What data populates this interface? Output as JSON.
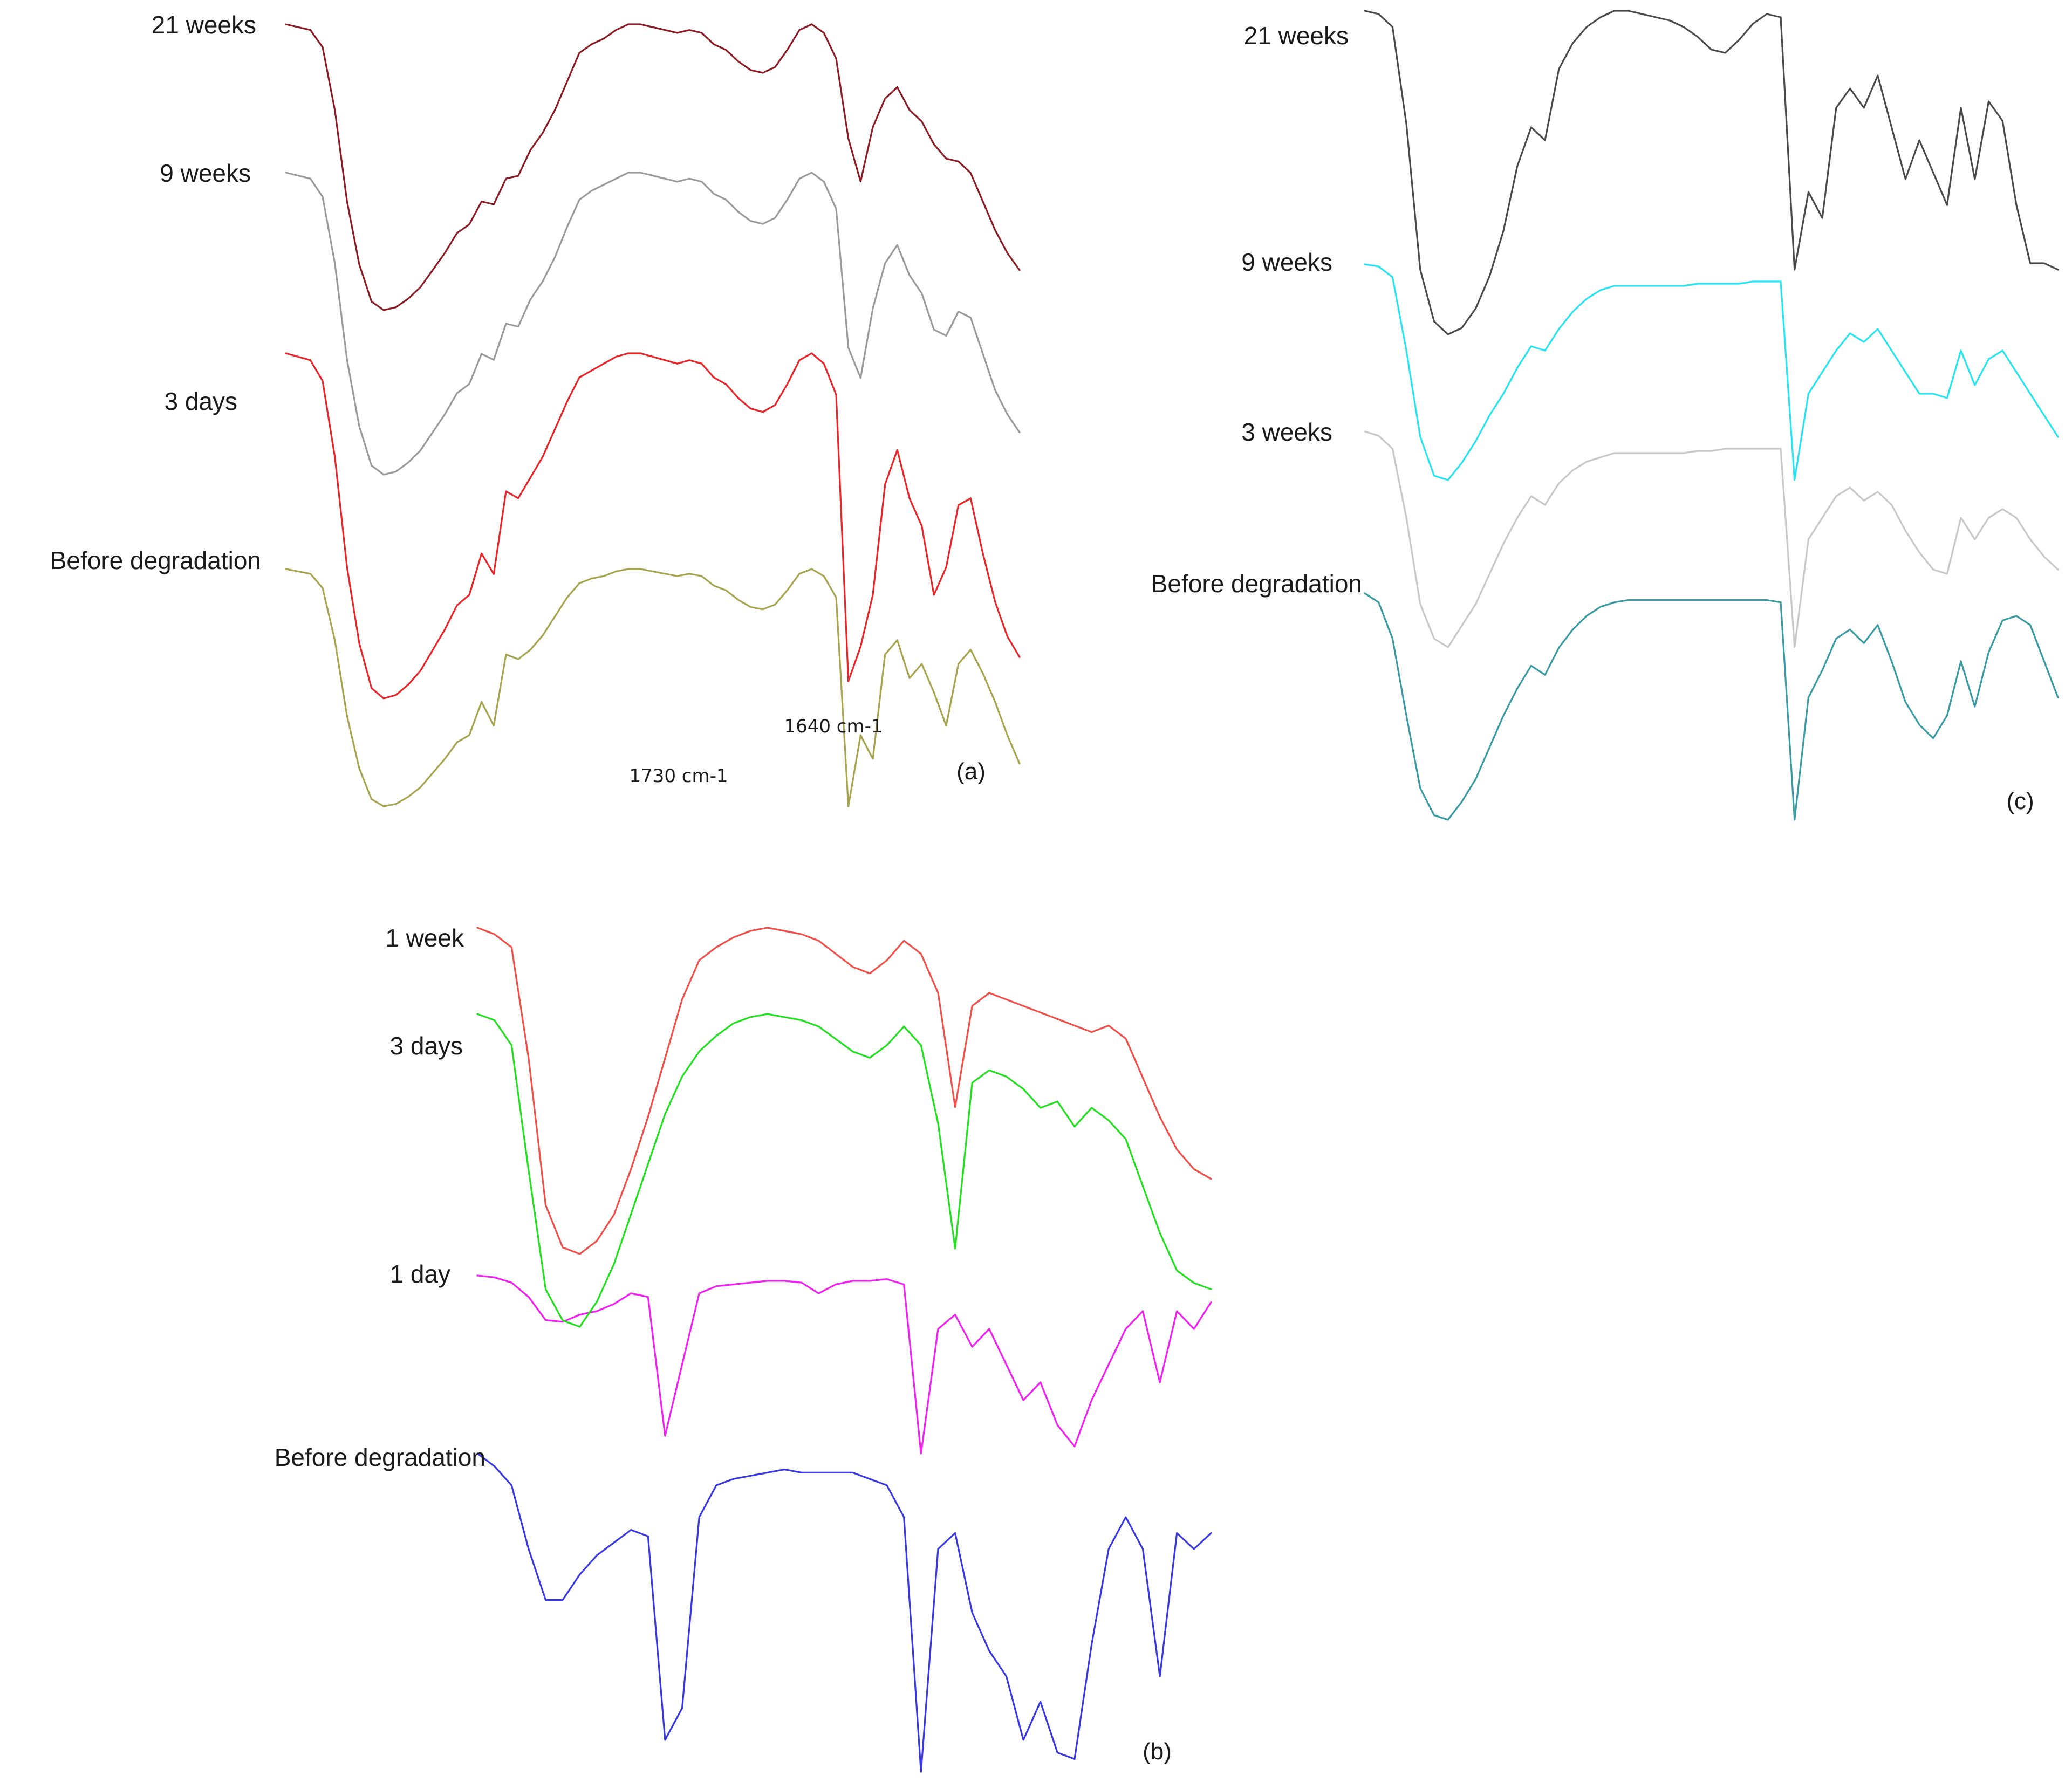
{
  "chart_data": [
    {
      "type": "line",
      "panel": "(a)",
      "annotations": [
        "1730 cm-1",
        "1640 cm-1"
      ],
      "series": [
        {
          "name": "21 weeks",
          "color": "#8b1c24",
          "values": [
            0.0,
            0.01,
            0.02,
            0.08,
            0.3,
            0.62,
            0.84,
            0.97,
            1.0,
            0.99,
            0.96,
            0.92,
            0.86,
            0.8,
            0.73,
            0.7,
            0.62,
            0.63,
            0.54,
            0.53,
            0.44,
            0.38,
            0.3,
            0.2,
            0.1,
            0.07,
            0.05,
            0.02,
            0.0,
            0.0,
            0.01,
            0.02,
            0.03,
            0.02,
            0.03,
            0.07,
            0.09,
            0.13,
            0.16,
            0.17,
            0.15,
            0.09,
            0.02,
            0.0,
            0.03,
            0.12,
            0.4,
            0.55,
            0.36,
            0.26,
            0.22,
            0.3,
            0.34,
            0.42,
            0.47,
            0.48,
            0.52,
            0.62,
            0.72,
            0.8,
            0.86
          ]
        },
        {
          "name": "9 weeks",
          "color": "#9a9a9a",
          "values": [
            0.0,
            0.01,
            0.02,
            0.08,
            0.3,
            0.62,
            0.84,
            0.97,
            1.0,
            0.99,
            0.96,
            0.92,
            0.86,
            0.8,
            0.73,
            0.7,
            0.6,
            0.62,
            0.5,
            0.51,
            0.42,
            0.36,
            0.28,
            0.18,
            0.09,
            0.06,
            0.04,
            0.02,
            0.0,
            0.0,
            0.01,
            0.02,
            0.03,
            0.02,
            0.03,
            0.07,
            0.09,
            0.13,
            0.16,
            0.17,
            0.15,
            0.09,
            0.02,
            0.0,
            0.03,
            0.12,
            0.58,
            0.68,
            0.45,
            0.3,
            0.24,
            0.34,
            0.4,
            0.52,
            0.54,
            0.46,
            0.48,
            0.6,
            0.72,
            0.8,
            0.86
          ]
        },
        {
          "name": "3 days",
          "color": "#e8262a",
          "values": [
            0.0,
            0.01,
            0.02,
            0.08,
            0.3,
            0.62,
            0.84,
            0.97,
            1.0,
            0.99,
            0.96,
            0.92,
            0.86,
            0.8,
            0.73,
            0.7,
            0.58,
            0.64,
            0.4,
            0.42,
            0.36,
            0.3,
            0.22,
            0.14,
            0.07,
            0.05,
            0.03,
            0.01,
            0.0,
            0.0,
            0.01,
            0.02,
            0.03,
            0.02,
            0.03,
            0.07,
            0.09,
            0.13,
            0.16,
            0.17,
            0.15,
            0.09,
            0.02,
            0.0,
            0.03,
            0.12,
            0.95,
            0.85,
            0.7,
            0.38,
            0.28,
            0.42,
            0.5,
            0.7,
            0.62,
            0.44,
            0.42,
            0.58,
            0.72,
            0.82,
            0.88
          ]
        },
        {
          "name": "Before degradation",
          "color": "#a8a34e",
          "values": [
            0.0,
            0.01,
            0.02,
            0.08,
            0.3,
            0.62,
            0.84,
            0.97,
            1.0,
            0.99,
            0.96,
            0.92,
            0.86,
            0.8,
            0.73,
            0.7,
            0.56,
            0.66,
            0.36,
            0.38,
            0.34,
            0.28,
            0.2,
            0.12,
            0.06,
            0.04,
            0.03,
            0.01,
            0.0,
            0.0,
            0.01,
            0.02,
            0.03,
            0.02,
            0.03,
            0.07,
            0.09,
            0.13,
            0.16,
            0.17,
            0.15,
            0.09,
            0.02,
            0.0,
            0.03,
            0.12,
            1.0,
            0.7,
            0.8,
            0.36,
            0.3,
            0.46,
            0.4,
            0.52,
            0.66,
            0.4,
            0.34,
            0.44,
            0.56,
            0.7,
            0.82
          ]
        }
      ]
    },
    {
      "type": "line",
      "panel": "(b)",
      "series": [
        {
          "name": "1 week",
          "color": "#f0504a",
          "values": [
            0.0,
            0.02,
            0.06,
            0.4,
            0.85,
            0.98,
            1.0,
            0.96,
            0.88,
            0.74,
            0.58,
            0.4,
            0.22,
            0.1,
            0.06,
            0.03,
            0.01,
            0.0,
            0.01,
            0.02,
            0.04,
            0.08,
            0.12,
            0.14,
            0.1,
            0.04,
            0.08,
            0.2,
            0.55,
            0.24,
            0.2,
            0.22,
            0.24,
            0.26,
            0.28,
            0.3,
            0.32,
            0.3,
            0.34,
            0.46,
            0.58,
            0.68,
            0.74,
            0.77
          ]
        },
        {
          "name": "3 days",
          "color": "#22e020",
          "values": [
            0.0,
            0.02,
            0.1,
            0.5,
            0.88,
            0.98,
            1.0,
            0.92,
            0.8,
            0.64,
            0.48,
            0.32,
            0.2,
            0.12,
            0.07,
            0.03,
            0.01,
            0.0,
            0.01,
            0.02,
            0.04,
            0.08,
            0.12,
            0.14,
            0.1,
            0.04,
            0.1,
            0.35,
            0.75,
            0.22,
            0.18,
            0.2,
            0.24,
            0.3,
            0.28,
            0.36,
            0.3,
            0.34,
            0.4,
            0.55,
            0.7,
            0.82,
            0.86,
            0.88
          ]
        },
        {
          "name": "1 day",
          "color": "#f020f0",
          "values": [
            0.0,
            0.01,
            0.04,
            0.12,
            0.25,
            0.26,
            0.22,
            0.2,
            0.16,
            0.1,
            0.12,
            0.9,
            0.5,
            0.1,
            0.06,
            0.05,
            0.04,
            0.03,
            0.03,
            0.04,
            0.1,
            0.05,
            0.03,
            0.03,
            0.02,
            0.05,
            1.0,
            0.3,
            0.22,
            0.4,
            0.3,
            0.5,
            0.7,
            0.6,
            0.84,
            0.96,
            0.7,
            0.5,
            0.3,
            0.2,
            0.6,
            0.2,
            0.3,
            0.15
          ]
        },
        {
          "name": "Before degradation",
          "color": "#3838e0",
          "values": [
            0.0,
            0.04,
            0.1,
            0.3,
            0.46,
            0.46,
            0.38,
            0.32,
            0.28,
            0.24,
            0.26,
            0.9,
            0.8,
            0.2,
            0.1,
            0.08,
            0.07,
            0.06,
            0.05,
            0.06,
            0.06,
            0.06,
            0.06,
            0.08,
            0.1,
            0.2,
            1.0,
            0.3,
            0.25,
            0.5,
            0.62,
            0.7,
            0.9,
            0.78,
            0.94,
            0.96,
            0.6,
            0.3,
            0.2,
            0.3,
            0.7,
            0.25,
            0.3,
            0.25
          ]
        }
      ]
    },
    {
      "type": "line",
      "panel": "(c)",
      "series": [
        {
          "name": "21 weeks",
          "color": "#4a4a4a",
          "values": [
            0.0,
            0.01,
            0.05,
            0.35,
            0.8,
            0.96,
            1.0,
            0.98,
            0.92,
            0.82,
            0.68,
            0.48,
            0.36,
            0.4,
            0.18,
            0.1,
            0.05,
            0.02,
            0.0,
            0.0,
            0.01,
            0.02,
            0.03,
            0.05,
            0.08,
            0.12,
            0.13,
            0.09,
            0.04,
            0.01,
            0.02,
            0.8,
            0.56,
            0.64,
            0.3,
            0.24,
            0.3,
            0.2,
            0.36,
            0.52,
            0.4,
            0.5,
            0.6,
            0.3,
            0.52,
            0.28,
            0.34,
            0.6,
            0.78,
            0.78,
            0.8
          ]
        },
        {
          "name": "9 weeks",
          "color": "#28e4f0",
          "values": [
            0.0,
            0.01,
            0.06,
            0.4,
            0.8,
            0.98,
            1.0,
            0.92,
            0.82,
            0.7,
            0.6,
            0.48,
            0.38,
            0.4,
            0.3,
            0.22,
            0.16,
            0.12,
            0.1,
            0.1,
            0.1,
            0.1,
            0.1,
            0.1,
            0.09,
            0.09,
            0.09,
            0.09,
            0.08,
            0.08,
            0.08,
            1.0,
            0.6,
            0.5,
            0.4,
            0.32,
            0.36,
            0.3,
            0.4,
            0.5,
            0.6,
            0.6,
            0.62,
            0.4,
            0.56,
            0.44,
            0.4,
            0.5,
            0.6,
            0.7,
            0.8
          ]
        },
        {
          "name": "3 weeks",
          "color": "#c8c8c8",
          "values": [
            0.0,
            0.02,
            0.08,
            0.4,
            0.8,
            0.96,
            1.0,
            0.9,
            0.8,
            0.66,
            0.52,
            0.4,
            0.3,
            0.34,
            0.24,
            0.18,
            0.14,
            0.12,
            0.1,
            0.1,
            0.1,
            0.1,
            0.1,
            0.1,
            0.09,
            0.09,
            0.08,
            0.08,
            0.08,
            0.08,
            0.08,
            1.0,
            0.5,
            0.4,
            0.3,
            0.26,
            0.32,
            0.28,
            0.34,
            0.46,
            0.56,
            0.64,
            0.66,
            0.4,
            0.5,
            0.4,
            0.36,
            0.4,
            0.5,
            0.58,
            0.64
          ]
        },
        {
          "name": "Before degradation",
          "color": "#3a9aa4",
          "values": [
            0.0,
            0.04,
            0.2,
            0.54,
            0.86,
            0.98,
            1.0,
            0.92,
            0.82,
            0.68,
            0.54,
            0.42,
            0.32,
            0.36,
            0.24,
            0.16,
            0.1,
            0.06,
            0.04,
            0.03,
            0.03,
            0.03,
            0.03,
            0.03,
            0.03,
            0.03,
            0.03,
            0.03,
            0.03,
            0.03,
            0.04,
            1.0,
            0.46,
            0.34,
            0.2,
            0.16,
            0.22,
            0.14,
            0.3,
            0.48,
            0.58,
            0.64,
            0.54,
            0.3,
            0.5,
            0.26,
            0.12,
            0.1,
            0.14,
            0.3,
            0.46
          ]
        }
      ]
    }
  ]
}
